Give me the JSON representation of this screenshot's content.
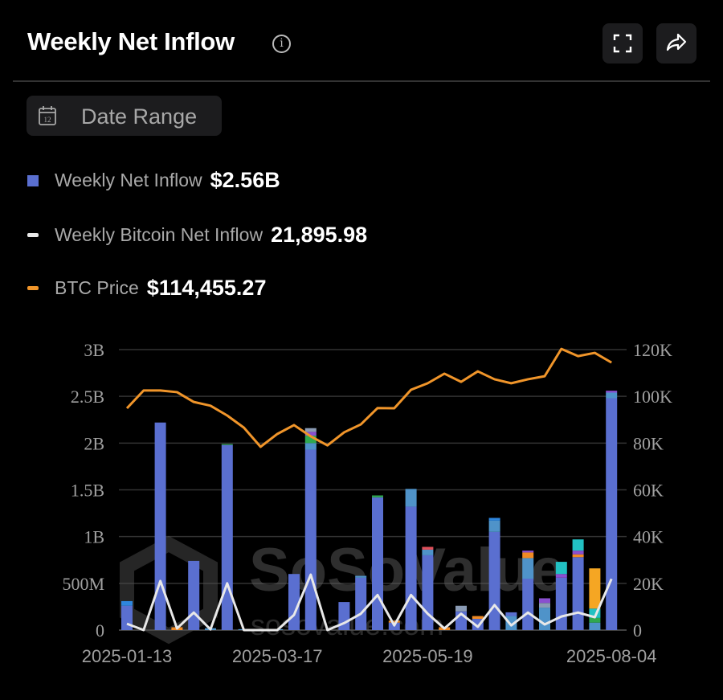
{
  "header": {
    "title": "Weekly Net Inflow",
    "info_icon": "info-icon",
    "fullscreen_icon": "fullscreen-icon",
    "share_icon": "share-icon"
  },
  "date_range": {
    "label": "Date Range",
    "icon": "calendar-icon",
    "icon_text": "12"
  },
  "legend": [
    {
      "name": "Weekly Net Inflow",
      "value": "$2.56B",
      "color": "#5a6fd0",
      "shape": "square"
    },
    {
      "name": "Weekly Bitcoin Net Inflow",
      "value": "21,895.98",
      "color": "#e8e8e8",
      "shape": "line"
    },
    {
      "name": "BTC Price",
      "value": "$114,455.27",
      "color": "#f0952a",
      "shape": "line"
    }
  ],
  "watermark": {
    "brand": "SoSoValue",
    "site": "sosovalue.com"
  },
  "chart_data": {
    "type": "bar",
    "grid": true,
    "x_tick_labels": [
      "2025-01-13",
      "2025-03-17",
      "2025-05-19",
      "2025-08-04"
    ],
    "x_tick_index": [
      0,
      9,
      18,
      29
    ],
    "left_axis": {
      "ticks": [
        "0",
        "500M",
        "1B",
        "1.5B",
        "2B",
        "2.5B",
        "3B"
      ],
      "range_billions": [
        0,
        3
      ]
    },
    "right_axis": {
      "ticks": [
        "0",
        "20K",
        "40K",
        "60K",
        "80K",
        "100K",
        "120K"
      ],
      "range": [
        0,
        120000
      ]
    },
    "segment_colors": [
      "#5a6fd0",
      "#4f93c9",
      "#2fa84f",
      "#8a4fd0",
      "#f08a24",
      "#22c1c3",
      "#f5a623",
      "#e0505a",
      "#8a9bb5",
      "#2e86de"
    ],
    "stacked_bars_billions": [
      [
        [
          0.26,
          0
        ],
        [
          0.05,
          9
        ]
      ],
      [
        [
          0,
          0
        ]
      ],
      [
        [
          2.22,
          0
        ]
      ],
      [
        [
          0.03,
          4
        ]
      ],
      [
        [
          0.74,
          0
        ]
      ],
      [
        [
          0.02,
          1
        ]
      ],
      [
        [
          1.98,
          0
        ],
        [
          0.01,
          2
        ]
      ],
      [
        [
          0.01,
          1
        ]
      ],
      [
        [
          0.01,
          1
        ]
      ],
      [
        [
          0.01,
          1
        ]
      ],
      [
        [
          0.6,
          0
        ]
      ],
      [
        [
          1.93,
          0
        ],
        [
          0.07,
          1
        ],
        [
          0.08,
          2
        ],
        [
          0.04,
          3
        ],
        [
          0.04,
          8
        ]
      ],
      [
        [
          0,
          0
        ]
      ],
      [
        [
          0.3,
          0
        ]
      ],
      [
        [
          0.56,
          0
        ],
        [
          0.02,
          1
        ]
      ],
      [
        [
          1.42,
          0
        ],
        [
          0.02,
          2
        ]
      ],
      [
        [
          0.08,
          0
        ],
        [
          0.02,
          4
        ]
      ],
      [
        [
          1.32,
          0
        ],
        [
          0.19,
          1
        ]
      ],
      [
        [
          0.8,
          0
        ],
        [
          0.06,
          1
        ],
        [
          0.03,
          7
        ]
      ],
      [
        [
          0.03,
          4
        ]
      ],
      [
        [
          0.2,
          0
        ],
        [
          0.06,
          8
        ]
      ],
      [
        [
          0.12,
          0
        ],
        [
          0.03,
          4
        ]
      ],
      [
        [
          1.05,
          0
        ],
        [
          0.12,
          1
        ],
        [
          0.03,
          9
        ]
      ],
      [
        [
          0.15,
          1
        ],
        [
          0.04,
          0
        ]
      ],
      [
        [
          0.55,
          0
        ],
        [
          0.22,
          1
        ],
        [
          0.06,
          4
        ],
        [
          0.02,
          3
        ]
      ],
      [
        [
          0.24,
          1
        ],
        [
          0.05,
          8
        ],
        [
          0.05,
          3
        ]
      ],
      [
        [
          0.56,
          0
        ],
        [
          0.04,
          3
        ],
        [
          0.13,
          5
        ]
      ],
      [
        [
          0.78,
          0
        ],
        [
          0.03,
          4
        ],
        [
          0.04,
          3
        ],
        [
          0.12,
          5
        ]
      ],
      [
        [
          0.08,
          1
        ],
        [
          0.05,
          2
        ],
        [
          0.1,
          5
        ],
        [
          0.43,
          6
        ]
      ],
      [
        [
          2.48,
          0
        ],
        [
          0.06,
          1
        ],
        [
          0.02,
          3
        ]
      ]
    ],
    "weekly_btc_net_inflow": [
      2700,
      0,
      21000,
      700,
      7500,
      300,
      20000,
      0,
      0,
      0,
      6500,
      23700,
      0,
      3000,
      7000,
      15000,
      2000,
      15000,
      7000,
      700,
      7000,
      1400,
      10700,
      2000,
      7500,
      2400,
      5800,
      7500,
      5500,
      21896
    ],
    "btc_price": [
      94900,
      102500,
      102500,
      101800,
      97600,
      96000,
      91800,
      86600,
      78400,
      83900,
      87700,
      82900,
      79000,
      84600,
      88000,
      95000,
      94900,
      102800,
      105600,
      109700,
      106200,
      110700,
      107300,
      105600,
      107300,
      108600,
      120300,
      117200,
      118600,
      114455
    ]
  }
}
